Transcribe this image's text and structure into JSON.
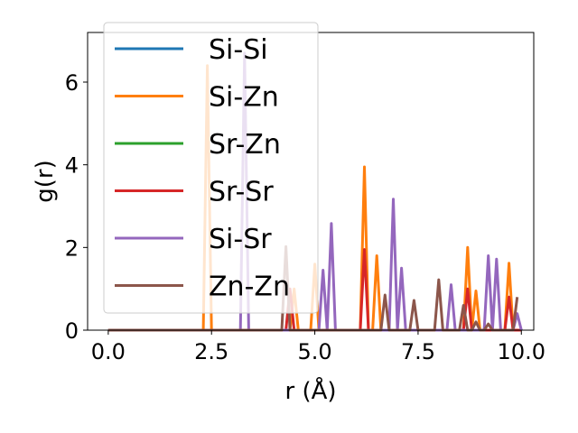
{
  "chart_data": {
    "type": "line",
    "xlabel": "r (Å)",
    "ylabel": "g(r)",
    "xlim": [
      -0.5,
      10.3
    ],
    "ylim": [
      0,
      7.2
    ],
    "x_ticks": [
      0.0,
      2.5,
      5.0,
      7.5,
      10.0
    ],
    "x_tick_labels": [
      "0.0",
      "2.5",
      "5.0",
      "7.5",
      "10.0"
    ],
    "y_ticks": [
      0,
      2,
      4,
      6
    ],
    "y_tick_labels": [
      "0",
      "2",
      "4",
      "6"
    ],
    "grid": false,
    "legend": "top-left",
    "series": [
      {
        "name": "Si-Si",
        "color": "#1f77b4",
        "points": [
          [
            0,
            0
          ],
          [
            10,
            0
          ]
        ]
      },
      {
        "name": "Si-Zn",
        "color": "#ff7f0e",
        "points": [
          [
            0,
            0
          ],
          [
            2.3,
            0
          ],
          [
            2.4,
            6.4
          ],
          [
            2.5,
            0
          ],
          [
            4.4,
            0
          ],
          [
            4.5,
            1.0
          ],
          [
            4.6,
            0
          ],
          [
            4.9,
            0
          ],
          [
            5.0,
            1.6
          ],
          [
            5.1,
            0
          ],
          [
            6.1,
            0
          ],
          [
            6.2,
            3.95
          ],
          [
            6.3,
            0
          ],
          [
            6.4,
            0
          ],
          [
            6.5,
            1.8
          ],
          [
            6.6,
            0
          ],
          [
            8.6,
            0
          ],
          [
            8.7,
            2.0
          ],
          [
            8.8,
            0
          ],
          [
            8.9,
            0.95
          ],
          [
            9.0,
            0
          ],
          [
            9.6,
            0
          ],
          [
            9.7,
            1.62
          ],
          [
            9.8,
            0
          ],
          [
            10,
            0
          ]
        ]
      },
      {
        "name": "Sr-Zn",
        "color": "#2ca02c",
        "points": [
          [
            0,
            0
          ],
          [
            10,
            0
          ]
        ]
      },
      {
        "name": "Sr-Sr",
        "color": "#d62728",
        "points": [
          [
            0,
            0
          ],
          [
            4.3,
            0
          ],
          [
            4.4,
            1.0
          ],
          [
            4.5,
            0
          ],
          [
            6.1,
            0
          ],
          [
            6.2,
            1.95
          ],
          [
            6.3,
            0
          ],
          [
            8.6,
            0
          ],
          [
            8.7,
            1.0
          ],
          [
            8.8,
            0
          ],
          [
            9.6,
            0
          ],
          [
            9.7,
            0.8
          ],
          [
            9.8,
            0
          ],
          [
            10,
            0
          ]
        ]
      },
      {
        "name": "Si-Sr",
        "color": "#9467bd",
        "points": [
          [
            0,
            0
          ],
          [
            3.2,
            0
          ],
          [
            3.3,
            6.7
          ],
          [
            3.4,
            0
          ],
          [
            5.1,
            0
          ],
          [
            5.2,
            1.45
          ],
          [
            5.3,
            0
          ],
          [
            5.4,
            2.58
          ],
          [
            5.5,
            0
          ],
          [
            6.8,
            0
          ],
          [
            6.9,
            3.17
          ],
          [
            7.0,
            0
          ],
          [
            7.1,
            1.5
          ],
          [
            7.2,
            0
          ],
          [
            8.2,
            0
          ],
          [
            8.3,
            1.1
          ],
          [
            8.4,
            0
          ],
          [
            9.1,
            0
          ],
          [
            9.2,
            1.8
          ],
          [
            9.3,
            0
          ],
          [
            9.4,
            1.72
          ],
          [
            9.5,
            0
          ],
          [
            9.8,
            0
          ],
          [
            9.9,
            0.4
          ],
          [
            10,
            0
          ]
        ]
      },
      {
        "name": "Zn-Zn",
        "color": "#8c564b",
        "points": [
          [
            0,
            0
          ],
          [
            4.2,
            0
          ],
          [
            4.3,
            2.02
          ],
          [
            4.4,
            0
          ],
          [
            6.6,
            0
          ],
          [
            6.7,
            0.85
          ],
          [
            6.8,
            0
          ],
          [
            7.3,
            0
          ],
          [
            7.4,
            0.72
          ],
          [
            7.5,
            0
          ],
          [
            7.9,
            0
          ],
          [
            8.0,
            1.22
          ],
          [
            8.1,
            0
          ],
          [
            8.5,
            0
          ],
          [
            8.6,
            0.6
          ],
          [
            8.7,
            0
          ],
          [
            8.8,
            0
          ],
          [
            8.9,
            0.2
          ],
          [
            9.0,
            0
          ],
          [
            9.1,
            0
          ],
          [
            9.2,
            0.15
          ],
          [
            9.3,
            0
          ],
          [
            9.8,
            0
          ],
          [
            9.9,
            0.8
          ]
        ]
      }
    ]
  }
}
